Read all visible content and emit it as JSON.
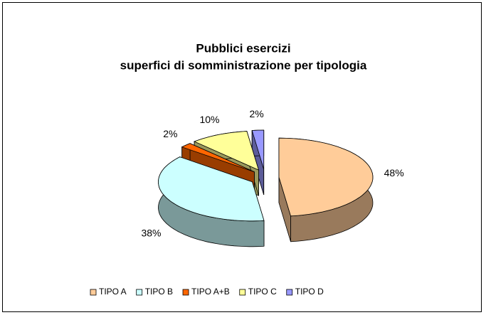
{
  "chart_data": {
    "type": "pie3d",
    "title": [
      "Pubblici esercizi",
      "superfici di somministrazione per tipologia"
    ],
    "categories": [
      "TIPO A",
      "TIPO B",
      "TIPO A+B",
      "TIPO C",
      "TIPO D"
    ],
    "values": [
      48,
      38,
      2,
      10,
      2
    ],
    "value_labels": [
      "48%",
      "38%",
      "2%",
      "10%",
      "2%"
    ],
    "colors": [
      "#FFCC99",
      "#CCFFFF",
      "#FF6600",
      "#FFFF99",
      "#9999FF"
    ],
    "legend": "bottom"
  }
}
